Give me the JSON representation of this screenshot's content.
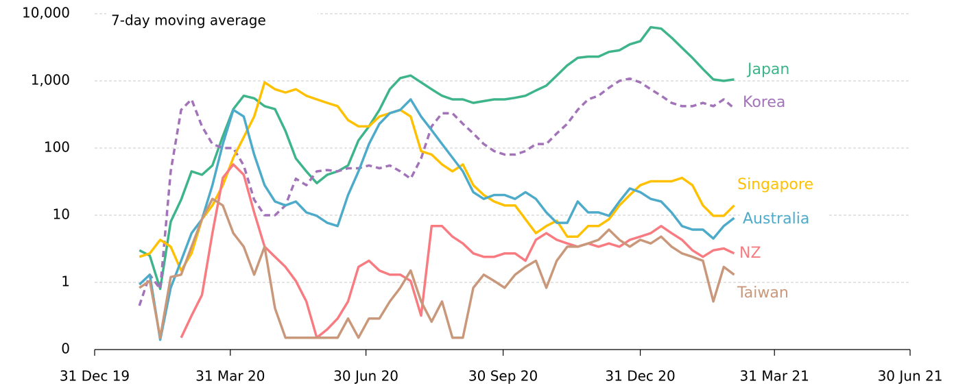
{
  "chart_data": {
    "type": "line",
    "annotation": "7-day moving average",
    "yscale": "log",
    "grid": true,
    "ylim": [
      0.1,
      10000
    ],
    "yticks": [
      {
        "value": 0.1,
        "label": "0"
      },
      1,
      10,
      100,
      {
        "value": 1000,
        "label": "1,000"
      },
      {
        "value": 10000,
        "label": "10,000"
      }
    ],
    "xlim": [
      "2019-12-31",
      "2021-06-30"
    ],
    "xticks": [
      {
        "value": "2019-12-31",
        "label": "31 Dec 19"
      },
      {
        "value": "2020-03-31",
        "label": "31 Mar 20"
      },
      {
        "value": "2020-06-30",
        "label": "30 Jun 20"
      },
      {
        "value": "2020-09-30",
        "label": "30 Sep 20"
      },
      {
        "value": "2020-12-31",
        "label": "31 Dec 20"
      },
      {
        "value": "2021-03-31",
        "label": "31 Mar 21"
      },
      {
        "value": "2021-06-30",
        "label": "30 Jun 21"
      }
    ],
    "x": [
      "2020-01-30",
      "2020-02-06",
      "2020-02-13",
      "2020-02-20",
      "2020-02-27",
      "2020-03-05",
      "2020-03-12",
      "2020-03-19",
      "2020-03-26",
      "2020-04-02",
      "2020-04-09",
      "2020-04-16",
      "2020-04-23",
      "2020-04-30",
      "2020-05-07",
      "2020-05-14",
      "2020-05-21",
      "2020-05-28",
      "2020-06-04",
      "2020-06-11",
      "2020-06-18",
      "2020-06-25",
      "2020-07-02",
      "2020-07-09",
      "2020-07-16",
      "2020-07-23",
      "2020-07-30",
      "2020-08-06",
      "2020-08-13",
      "2020-08-20",
      "2020-08-27",
      "2020-09-03",
      "2020-09-10",
      "2020-09-17",
      "2020-09-24",
      "2020-10-01",
      "2020-10-08",
      "2020-10-15",
      "2020-10-22",
      "2020-10-29",
      "2020-11-05",
      "2020-11-12",
      "2020-11-19",
      "2020-11-26",
      "2020-12-03",
      "2020-12-10",
      "2020-12-17",
      "2020-12-24",
      "2020-12-31",
      "2021-01-07",
      "2021-01-14",
      "2021-01-21",
      "2021-01-28",
      "2021-02-04",
      "2021-02-11",
      "2021-02-18",
      "2021-02-25",
      "2021-03-04"
    ],
    "series": [
      {
        "name": "Japan",
        "color": "#3db489",
        "linestyle": "solid",
        "values": [
          3,
          2.5,
          0.8,
          8,
          17,
          45,
          40,
          55,
          150,
          380,
          600,
          550,
          420,
          380,
          180,
          70,
          45,
          30,
          40,
          45,
          55,
          130,
          210,
          370,
          750,
          1100,
          1200,
          950,
          750,
          600,
          530,
          530,
          470,
          500,
          530,
          530,
          560,
          600,
          720,
          850,
          1200,
          1700,
          2200,
          2300,
          2300,
          2700,
          2850,
          3500,
          3900,
          6300,
          6000,
          4400,
          3100,
          2200,
          1500,
          1050,
          1000,
          1050
        ]
      },
      {
        "name": "Korea",
        "color": "#a273b8",
        "linestyle": "dashed",
        "values": [
          0.45,
          1.3,
          0.8,
          45,
          370,
          530,
          210,
          115,
          100,
          100,
          55,
          17,
          10,
          10,
          14,
          35,
          28,
          45,
          47,
          45,
          50,
          50,
          55,
          50,
          55,
          45,
          35,
          70,
          210,
          330,
          330,
          230,
          165,
          115,
          90,
          80,
          80,
          90,
          115,
          115,
          165,
          230,
          370,
          530,
          600,
          790,
          1000,
          1080,
          950,
          750,
          600,
          470,
          420,
          420,
          470,
          420,
          530,
          390
        ]
      },
      {
        "name": "Singapore",
        "color": "#ffc000",
        "linestyle": "solid",
        "values": [
          2.4,
          2.7,
          4.3,
          3.4,
          1.5,
          2.7,
          8.7,
          14,
          28,
          72,
          145,
          295,
          950,
          750,
          670,
          750,
          600,
          530,
          470,
          420,
          260,
          210,
          210,
          295,
          330,
          370,
          295,
          90,
          80,
          57,
          45,
          57,
          28,
          20,
          16,
          14,
          14,
          8.7,
          5.4,
          6.9,
          8.3,
          4.8,
          4.8,
          6.9,
          6.9,
          8.7,
          14,
          20,
          28,
          32,
          32,
          32,
          36,
          28,
          14,
          9.8,
          9.8,
          14
        ]
      },
      {
        "name": "Australia",
        "color": "#4dabc9",
        "linestyle": "solid",
        "values": [
          0.93,
          1.3,
          0.14,
          0.83,
          2.1,
          5.4,
          8.7,
          28,
          115,
          370,
          295,
          80,
          28,
          16,
          14,
          16,
          11,
          9.8,
          7.7,
          6.9,
          20,
          45,
          115,
          230,
          330,
          370,
          530,
          295,
          185,
          115,
          72,
          45,
          22,
          17.5,
          20,
          20,
          17.5,
          22,
          17.5,
          11,
          7.7,
          7.7,
          16,
          11,
          11,
          9.8,
          16,
          25,
          22,
          17.5,
          16,
          11,
          6.9,
          6.1,
          6.1,
          4.5,
          6.9,
          9.1
        ]
      },
      {
        "name": "NZ",
        "color": "#f77b80",
        "linestyle": "solid",
        "values": [
          null,
          null,
          null,
          null,
          0.15,
          0.32,
          0.65,
          5.4,
          36,
          57,
          40,
          11,
          3.4,
          2.4,
          1.7,
          1.05,
          0.52,
          0.15,
          0.2,
          0.29,
          0.52,
          1.7,
          2.1,
          1.5,
          1.3,
          1.3,
          1.05,
          0.32,
          6.9,
          6.9,
          4.8,
          3.8,
          2.7,
          2.4,
          2.4,
          2.7,
          2.7,
          2.1,
          4.3,
          5.4,
          4.3,
          3.8,
          3.4,
          3.8,
          3.4,
          3.8,
          3.4,
          4.3,
          4.8,
          5.4,
          6.9,
          5.4,
          4.3,
          3,
          2.4,
          3,
          3.2,
          2.7
        ]
      },
      {
        "name": "Taiwan",
        "color": "#c9977a",
        "linestyle": "solid",
        "values": [
          0.83,
          1.05,
          0.15,
          1.2,
          1.3,
          3.4,
          8.7,
          17.5,
          14,
          5.4,
          3.4,
          1.3,
          3.4,
          0.41,
          0.15,
          0.15,
          0.15,
          0.15,
          0.15,
          0.15,
          0.29,
          0.15,
          0.29,
          0.29,
          0.52,
          0.83,
          1.5,
          0.52,
          0.26,
          0.52,
          0.15,
          0.15,
          0.83,
          1.3,
          1.05,
          0.83,
          1.3,
          1.7,
          2.1,
          0.83,
          2.1,
          3.4,
          3.4,
          3.8,
          4.3,
          6.1,
          4.3,
          3.4,
          4.3,
          3.8,
          4.8,
          3.4,
          2.7,
          2.4,
          2.1,
          0.52,
          1.7,
          1.3
        ]
      }
    ]
  }
}
